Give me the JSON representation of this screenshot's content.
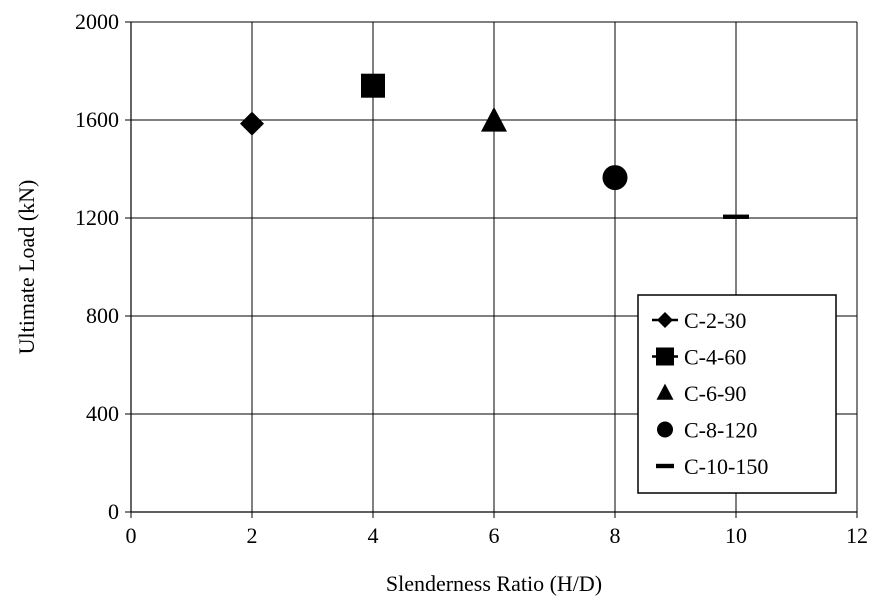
{
  "chart_data": {
    "type": "scatter",
    "title": "",
    "xlabel": "Slenderness Ratio (H/D)",
    "ylabel": "Ultimate Load (kN)",
    "xlim": [
      0,
      12
    ],
    "ylim": [
      0,
      2000
    ],
    "x_ticks": [
      0,
      2,
      4,
      6,
      8,
      10,
      12
    ],
    "y_ticks": [
      0,
      400,
      800,
      1200,
      1600,
      2000
    ],
    "grid": true,
    "legend_position": "bottom-right",
    "series": [
      {
        "name": "C-2-30",
        "marker": "diamond",
        "x": [
          2
        ],
        "y": [
          1585
        ]
      },
      {
        "name": "C-4-60",
        "marker": "square",
        "x": [
          4
        ],
        "y": [
          1740
        ]
      },
      {
        "name": "C-6-90",
        "marker": "triangle",
        "x": [
          6
        ],
        "y": [
          1595
        ]
      },
      {
        "name": "C-8-120",
        "marker": "circle",
        "x": [
          8
        ],
        "y": [
          1365
        ]
      },
      {
        "name": "C-10-150",
        "marker": "dash",
        "x": [
          10
        ],
        "y": [
          1205
        ]
      }
    ],
    "colors": {
      "marker": "#000000",
      "grid": "#000000",
      "background": "#ffffff"
    }
  }
}
